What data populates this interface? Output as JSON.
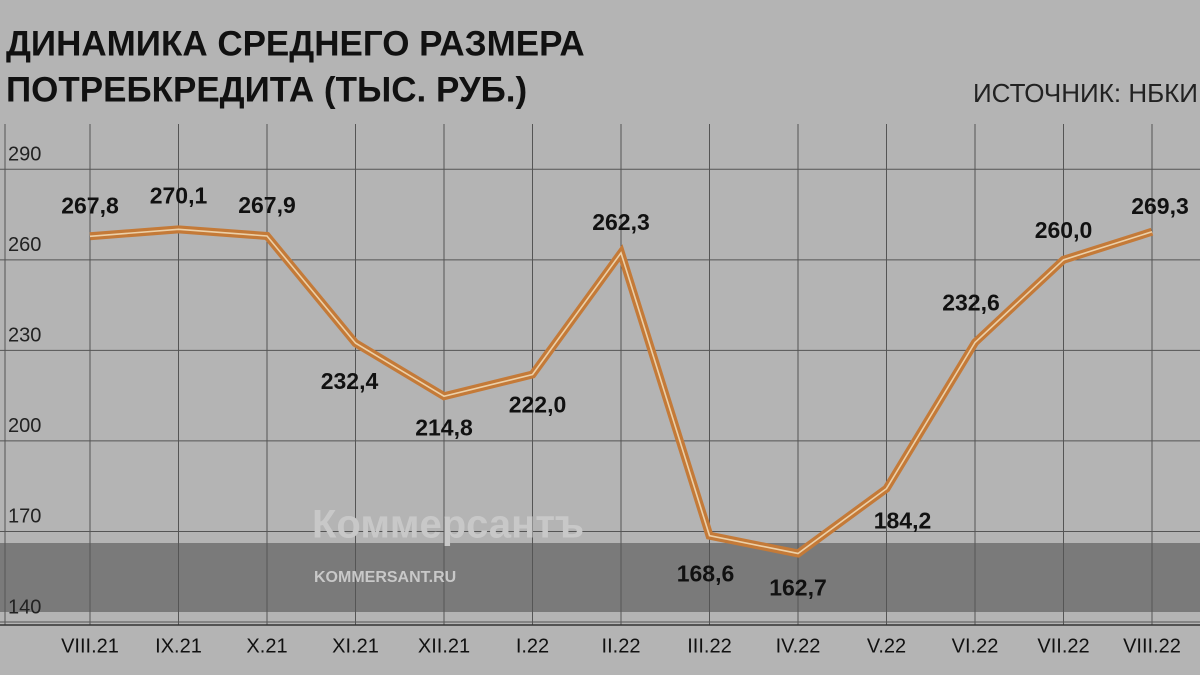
{
  "chart_data": {
    "type": "line",
    "title": [
      "ДИНАМИКА СРЕДНЕГО РАЗМЕРА",
      "ПОТРЕБКРЕДИТА (ТЫС. РУБ.)"
    ],
    "source": "ИСТОЧНИК: НБКИ",
    "watermark": [
      "Коммерсантъ",
      "KOMMERSANT.RU"
    ],
    "categories": [
      "VIII.21",
      "IX.21",
      "X.21",
      "XI.21",
      "XII.21",
      "I.22",
      "II.22",
      "III.22",
      "IV.22",
      "V.22",
      "VI.22",
      "VII.22",
      "VIII.22"
    ],
    "values": [
      267.8,
      270.1,
      267.9,
      232.4,
      214.8,
      222.0,
      262.3,
      168.6,
      162.7,
      184.2,
      232.6,
      260.0,
      269.3
    ],
    "value_labels": [
      "267,8",
      "270,1",
      "267,9",
      "232,4",
      "214,8",
      "222,0",
      "262,3",
      "168,6",
      "162,7",
      "184,2",
      "232,6",
      "260,0",
      "269,3"
    ],
    "color": "#c47a38",
    "ylim": [
      139,
      305
    ],
    "yticks": [
      140,
      170,
      200,
      230,
      260,
      290
    ],
    "grid": true
  }
}
